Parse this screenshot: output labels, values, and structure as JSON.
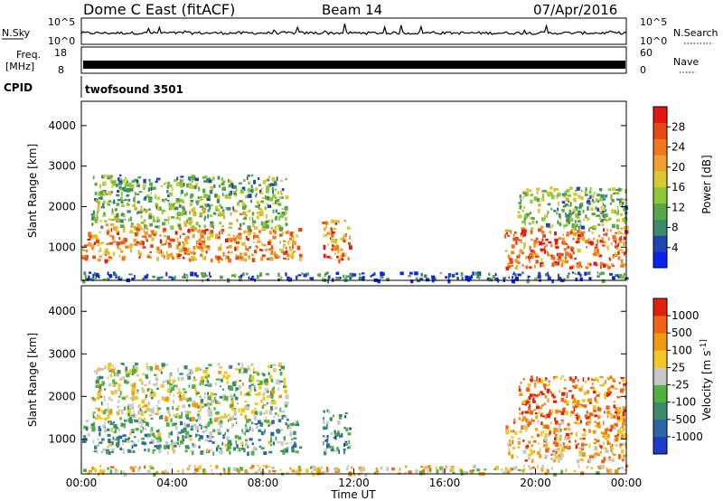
{
  "header": {
    "title": "Dome C East (fitACF)",
    "beam": "Beam 14",
    "date": "07/Apr/2016"
  },
  "panels": {
    "noise": {
      "left_label": "N.Sky",
      "right_label": "N.Search",
      "left_ticks": [
        "10^5",
        "10^0"
      ],
      "right_ticks": [
        "10^5",
        "10^0"
      ]
    },
    "freq": {
      "left_label_1": "Freq.",
      "left_label_2": "[MHz]",
      "right_label": "Nave",
      "left_ticks": [
        "18",
        "8"
      ],
      "right_ticks": [
        "60",
        "0"
      ]
    },
    "cpid": {
      "label": "CPID",
      "value": "twofsound 3501"
    }
  },
  "chart_data": [
    {
      "type": "heatmap",
      "title": "",
      "xlabel": "",
      "ylabel": "Slant Range [km]",
      "xlim": [
        0,
        24
      ],
      "ylim": [
        180,
        4600
      ],
      "yticks": [
        1000,
        2000,
        3000,
        4000
      ],
      "colorbar": {
        "label": "Power [dB]",
        "range": [
          0,
          32
        ],
        "ticks": [
          "4",
          "8",
          "12",
          "16",
          "20",
          "24",
          "28"
        ],
        "colors": [
          "#0a22ee",
          "#2244b0",
          "#3c8a6a",
          "#5aa64a",
          "#8cc83a",
          "#d8c832",
          "#f0a030",
          "#f07820",
          "#e64a14",
          "#e01a10"
        ]
      },
      "regions": [
        {
          "t0": 0.0,
          "t1": 9.6,
          "r0": 700,
          "r1": 1500,
          "level": 0.72
        },
        {
          "t0": 0.4,
          "t1": 9.0,
          "r0": 1500,
          "r1": 2000,
          "level": 0.45
        },
        {
          "t0": 0.5,
          "t1": 9.0,
          "r0": 2000,
          "r1": 2800,
          "level": 0.38
        },
        {
          "t0": 10.6,
          "t1": 11.8,
          "r0": 700,
          "r1": 1700,
          "level": 0.75
        },
        {
          "t0": 18.6,
          "t1": 24.0,
          "r0": 500,
          "r1": 1500,
          "level": 0.78
        },
        {
          "t0": 19.2,
          "t1": 24.0,
          "r0": 1500,
          "r1": 2500,
          "level": 0.4
        },
        {
          "t0": 0.0,
          "t1": 24.0,
          "r0": 200,
          "r1": 400,
          "level": 0.2
        }
      ]
    },
    {
      "type": "heatmap",
      "title": "",
      "xlabel": "Time UT",
      "ylabel": "Slant Range [km]",
      "xlim": [
        0,
        24
      ],
      "ylim": [
        180,
        4600
      ],
      "yticks": [
        1000,
        2000,
        3000,
        4000
      ],
      "xticks": [
        "00:00",
        "04:00",
        "08:00",
        "12:00",
        "16:00",
        "20:00",
        "00:00"
      ],
      "colorbar": {
        "label": "Velocity [m s^-1]",
        "ticks": [
          "1000",
          "500",
          "100",
          "25",
          "-25",
          "-100",
          "-500",
          "-1000"
        ],
        "colors": [
          "#1e3ac8",
          "#2a66a8",
          "#3c8a6a",
          "#50b040",
          "#c8c8c8",
          "#f0c828",
          "#f09a14",
          "#f06414",
          "#e02010"
        ]
      },
      "regions": [
        {
          "t0": 0.0,
          "t1": 9.6,
          "r0": 700,
          "r1": 1500,
          "level": 0.35
        },
        {
          "t0": 0.4,
          "t1": 9.0,
          "r0": 1500,
          "r1": 2000,
          "level": 0.5
        },
        {
          "t0": 0.5,
          "t1": 9.0,
          "r0": 2000,
          "r1": 2800,
          "level": 0.48
        },
        {
          "t0": 10.6,
          "t1": 11.8,
          "r0": 700,
          "r1": 1700,
          "level": 0.3
        },
        {
          "t0": 18.6,
          "t1": 24.0,
          "r0": 500,
          "r1": 1500,
          "level": 0.72
        },
        {
          "t0": 19.2,
          "t1": 24.0,
          "r0": 1500,
          "r1": 2500,
          "level": 0.8
        },
        {
          "t0": 0.0,
          "t1": 24.0,
          "r0": 200,
          "r1": 400,
          "level": 0.6
        }
      ]
    }
  ]
}
